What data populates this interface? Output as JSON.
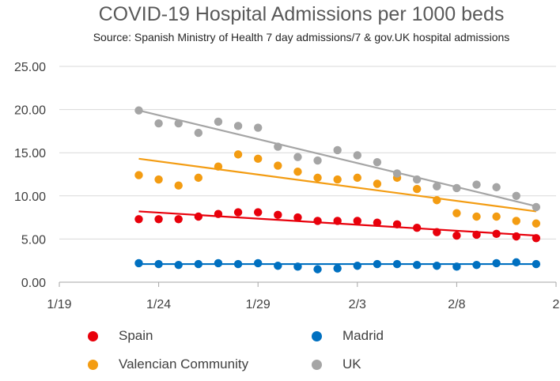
{
  "chart_data": {
    "type": "scatter",
    "title": "COVID-19 Hospital Admissions per 1000 beds",
    "subtitle": "Source: Spanish Ministry of Health 7 day admissions/7 & gov.UK hospital admissions",
    "x_tick_labels": [
      "1/19",
      "1/24",
      "1/29",
      "2/3",
      "2/8",
      "2"
    ],
    "x_tick_positions": [
      19,
      24,
      29,
      34,
      39,
      44
    ],
    "xlim": [
      19,
      44
    ],
    "y_tick_labels": [
      "0.00",
      "5.00",
      "10.00",
      "15.00",
      "20.00",
      "25.00"
    ],
    "ylim": [
      0,
      25
    ],
    "x": [
      23,
      24,
      25,
      26,
      27,
      28,
      29,
      30,
      31,
      32,
      33,
      34,
      35,
      36,
      37,
      38,
      39,
      40,
      41,
      42,
      43
    ],
    "series": [
      {
        "name": "Spain",
        "color": "#e8000b",
        "values": [
          7.3,
          7.3,
          7.3,
          7.6,
          7.9,
          8.1,
          8.1,
          7.8,
          7.5,
          7.1,
          7.1,
          7.1,
          6.9,
          6.7,
          6.3,
          5.8,
          5.4,
          5.5,
          5.6,
          5.3,
          5.1
        ],
        "trend": [
          8.2,
          5.4
        ]
      },
      {
        "name": "Madrid",
        "color": "#0070c0",
        "values": [
          2.2,
          2.1,
          2.0,
          2.1,
          2.2,
          2.1,
          2.2,
          1.9,
          1.8,
          1.5,
          1.6,
          1.9,
          2.1,
          2.1,
          2.0,
          1.9,
          1.8,
          2.0,
          2.2,
          2.3,
          2.1
        ],
        "trend": [
          2.1,
          2.1
        ]
      },
      {
        "name": "Valencian Community",
        "color": "#f39c12",
        "values": [
          12.4,
          11.9,
          11.2,
          12.1,
          13.4,
          14.8,
          14.3,
          13.5,
          12.8,
          12.1,
          11.9,
          12.1,
          11.4,
          12.1,
          10.8,
          9.5,
          8.0,
          7.6,
          7.6,
          7.1,
          6.8
        ],
        "trend": [
          14.3,
          8.2
        ]
      },
      {
        "name": "UK",
        "color": "#a5a5a5",
        "values": [
          19.9,
          18.4,
          18.4,
          17.3,
          18.6,
          18.1,
          17.9,
          15.7,
          14.5,
          14.1,
          15.3,
          14.7,
          13.9,
          12.6,
          11.9,
          11.1,
          10.9,
          11.3,
          11.0,
          10.0,
          8.7
        ],
        "trend": [
          19.9,
          8.8
        ]
      }
    ],
    "legend_position": "bottom",
    "grid": true
  }
}
